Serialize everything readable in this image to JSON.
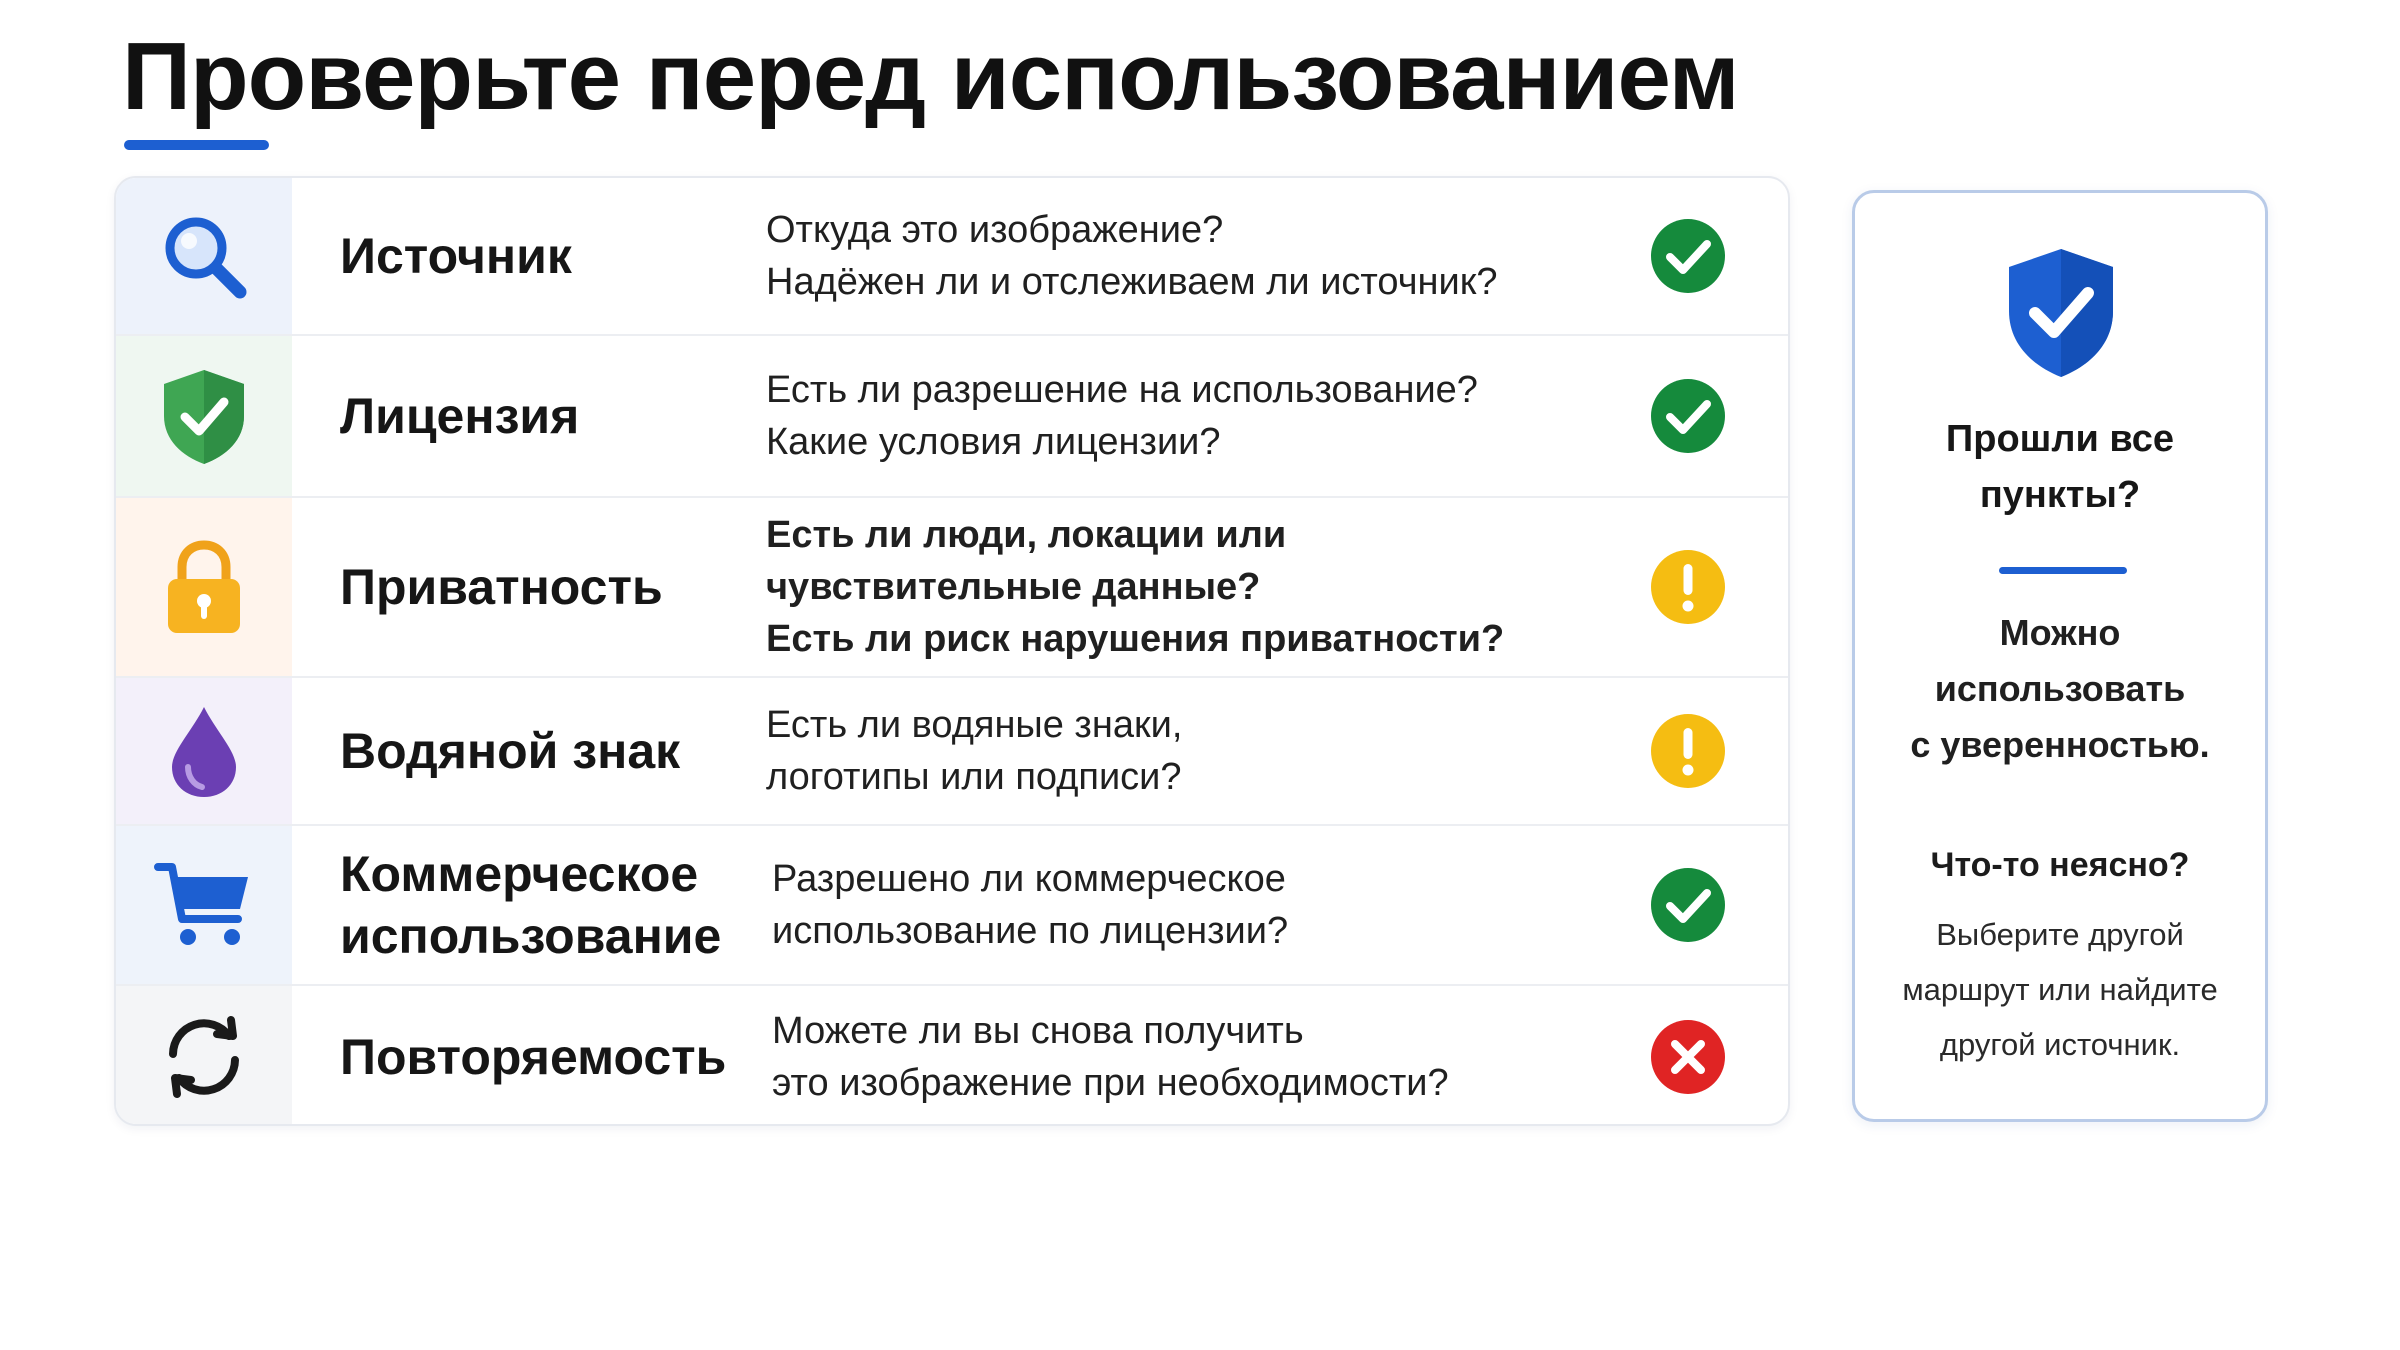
{
  "title": "Проверьте перед использованием",
  "colors": {
    "accent": "#1d5fd1",
    "ok": "#158a3c",
    "warn": "#f5bd12",
    "fail": "#e02424"
  },
  "rows": [
    {
      "name_lines": [
        "Источник"
      ],
      "desc_lines": [
        "Откуда это изображение?",
        "Надёжен ли и отслеживаем ли источник?"
      ],
      "icon": "magnifier-icon",
      "status": "ok"
    },
    {
      "name_lines": [
        "Лицензия"
      ],
      "desc_lines": [
        "Есть ли разрешение на использование?",
        "Какие условия лицензии?"
      ],
      "icon": "shield-check-icon",
      "status": "ok"
    },
    {
      "name_lines": [
        "Приватность"
      ],
      "desc_lines": [
        "Есть ли люди, локации или",
        "чувствительные данные?",
        "Есть ли риск нарушения приватности?"
      ],
      "icon": "padlock-icon",
      "status": "warning"
    },
    {
      "name_lines": [
        "Водяной знак"
      ],
      "desc_lines": [
        "Есть ли водяные знаки,",
        "логотипы или подписи?"
      ],
      "icon": "water-drop-icon",
      "status": "warning"
    },
    {
      "name_lines": [
        "Коммерческое",
        "использование"
      ],
      "desc_lines": [
        "Разрешено ли коммерческое",
        "использование по лицензии?"
      ],
      "icon": "shopping-cart-icon",
      "status": "ok"
    },
    {
      "name_lines": [
        "Повторяемость"
      ],
      "desc_lines": [
        "Можете ли вы снова получить",
        "это изображение при необходимости?"
      ],
      "icon": "refresh-arrows-icon",
      "status": "fail"
    }
  ],
  "summary": {
    "icon": "shield-check-icon",
    "question_lines": [
      "Прошли все",
      "пункты?"
    ],
    "result_lines": [
      "Можно",
      "использовать",
      "с уверенностью."
    ],
    "unclear": "Что-то неясно?",
    "advice_lines": [
      "Выберите другой",
      "маршрут или найдите",
      "другой источник."
    ]
  }
}
